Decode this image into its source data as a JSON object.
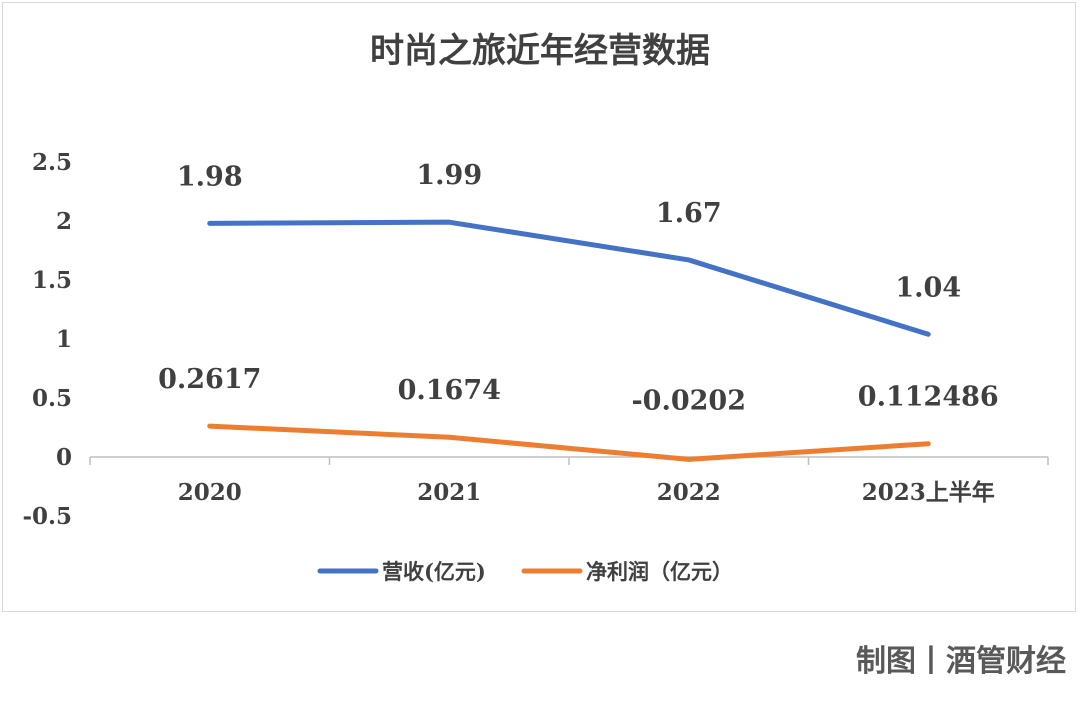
{
  "chart_data": {
    "type": "line",
    "title": "时尚之旅近年经营数据",
    "categories": [
      "2020",
      "2021",
      "2022",
      "2023上半年"
    ],
    "series": [
      {
        "name": "营收(亿元)",
        "color": "#4472C4",
        "values": [
          1.98,
          1.99,
          1.67,
          1.04
        ],
        "labels": [
          "1.98",
          "1.99",
          "1.67",
          "1.04"
        ]
      },
      {
        "name": "净利润（亿元）",
        "color": "#ED7D31",
        "values": [
          0.2617,
          0.1674,
          -0.0202,
          0.112486
        ],
        "labels": [
          "0.2617",
          "0.1674",
          "-0.0202",
          "0.112486"
        ]
      }
    ],
    "yticks": [
      "2.5",
      "2",
      "1.5",
      "1",
      "0.5",
      "0",
      "-0.5"
    ],
    "ylim": [
      -0.5,
      2.5
    ],
    "grid": false,
    "legend_position": "bottom"
  },
  "credit": "制图丨酒管财经"
}
